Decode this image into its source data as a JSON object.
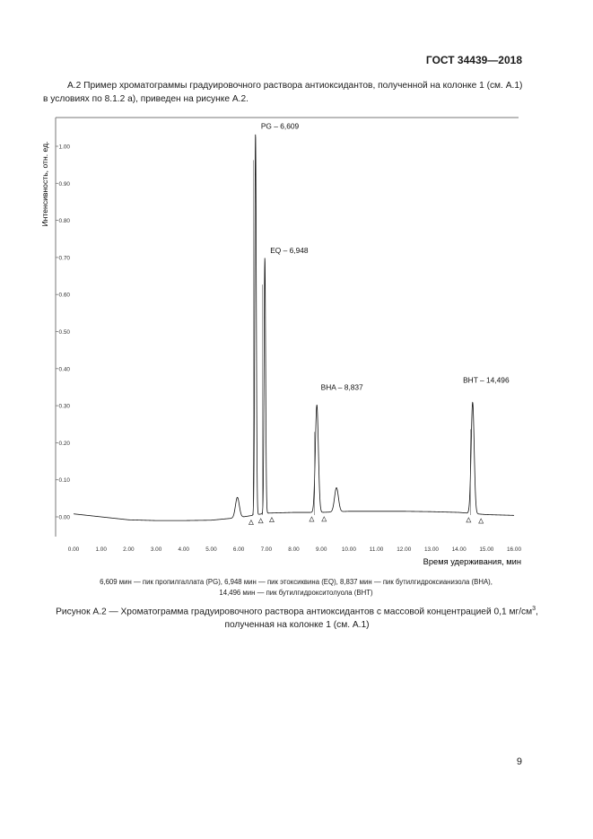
{
  "document": {
    "header_code": "ГОСТ 34439—2018",
    "intro_line1": "А.2 Пример хроматограммы градуировочного раствора антиоксидантов, полученной на колонке 1 (см. А.1)",
    "intro_line2": "в условиях по 8.1.2 а), приведен на рисунке А.2.",
    "legend_line1": "6,609 мин — пик пропилгаллата (PG), 6,948 мин — пик этоксиквина (EQ), 8,837 мин — пик бутилгидроксианизола (ВНА),",
    "legend_line2": "14,496 мин — пик бутилгидрокситолуола (ВНТ)",
    "caption_line1_pre": "Рисунок А.2 — Хроматограмма градуировочного раствора антиоксидантов с массовой концентрацией 0,1 мг/см",
    "caption_sup": "3",
    "caption_line1_post": ",",
    "caption_line2": "полученная на колонке 1 (см. А.1)",
    "page_number": "9"
  },
  "chart_data": {
    "type": "line",
    "ylabel": "Интенсивность, отн. ед.",
    "xlabel": "Время удерживания, мин",
    "xlim": [
      0,
      16
    ],
    "ylim": [
      0,
      1.0
    ],
    "x_ticks": [
      "0.00",
      "1.00",
      "2.00",
      "3.00",
      "4.00",
      "5.00",
      "6.00",
      "7.00",
      "8.00",
      "9.00",
      "10.00",
      "11.00",
      "12.00",
      "13.00",
      "14.00",
      "15.00",
      "16.00"
    ],
    "y_ticks": [
      "0.00",
      "0.10",
      "0.20",
      "0.30",
      "0.40",
      "0.50",
      "0.60",
      "0.70",
      "0.80",
      "0.90",
      "1.00"
    ],
    "peaks": [
      {
        "label": "PG – 6,609",
        "time": 6.609,
        "height": 1.03
      },
      {
        "label": "EQ – 6,948",
        "time": 6.948,
        "height": 0.69
      },
      {
        "label": "BHA – 8,837",
        "time": 8.837,
        "height": 0.29
      },
      {
        "label": "BHT – 14,496",
        "time": 14.496,
        "height": 0.3
      }
    ],
    "minor_peaks": [
      {
        "time": 5.95,
        "height": 0.055
      },
      {
        "time": 9.55,
        "height": 0.065
      }
    ],
    "baseline": [
      [
        0,
        0.008
      ],
      [
        1,
        0.0
      ],
      [
        2,
        -0.008
      ],
      [
        3,
        -0.01
      ],
      [
        4,
        -0.01
      ],
      [
        5,
        -0.009
      ],
      [
        6,
        -0.002
      ],
      [
        7,
        0.01
      ],
      [
        8,
        0.012
      ],
      [
        9,
        0.012
      ],
      [
        10,
        0.015
      ],
      [
        11,
        0.015
      ],
      [
        12,
        0.015
      ],
      [
        13,
        0.014
      ],
      [
        14,
        0.012
      ],
      [
        15,
        0.006
      ],
      [
        16,
        0.004
      ]
    ],
    "integration_marks": [
      6.45,
      6.8,
      7.2,
      8.65,
      9.1,
      14.35,
      14.8
    ],
    "grid": false
  }
}
